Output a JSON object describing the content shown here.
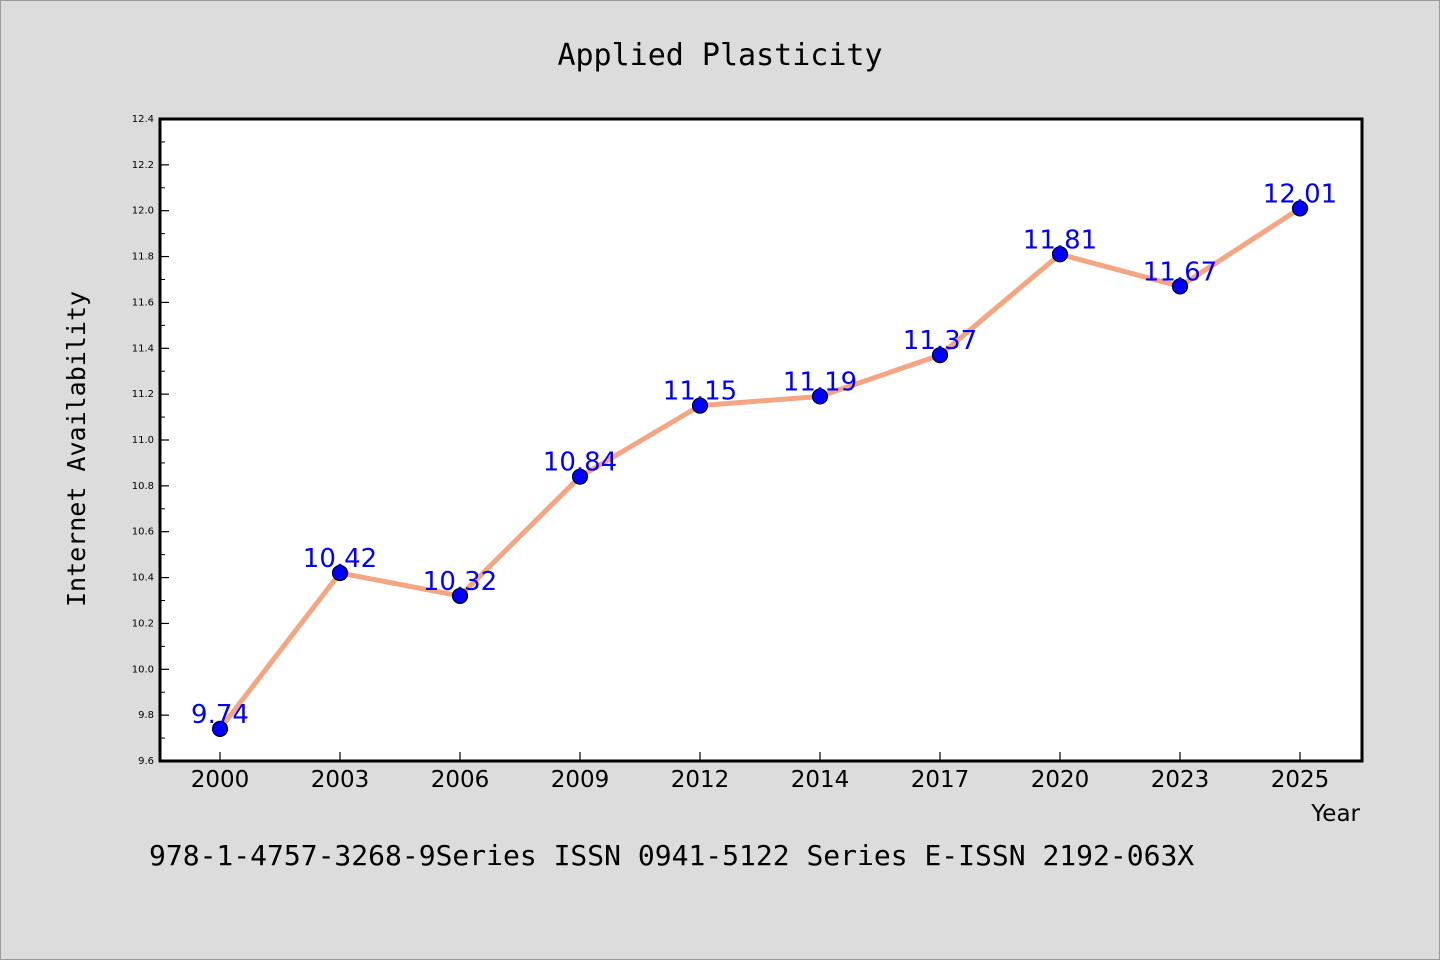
{
  "chart_data": {
    "type": "line",
    "title": "Applied Plasticity",
    "xlabel": "Year",
    "ylabel": "Internet Availability",
    "caption": "978-1-4757-3268-9Series ISSN 0941-5122 Series E-ISSN 2192-063X",
    "categories": [
      "2000",
      "2003",
      "2006",
      "2009",
      "2012",
      "2014",
      "2017",
      "2020",
      "2023",
      "2025"
    ],
    "values": [
      9.74,
      10.42,
      10.32,
      10.84,
      11.15,
      11.19,
      11.37,
      11.81,
      11.67,
      12.01
    ],
    "data_labels": [
      "9.74",
      "10.42",
      "10.32",
      "10.84",
      "11.15",
      "11.19",
      "11.37",
      "11.81",
      "11.67",
      "12.01"
    ],
    "ylim": [
      9.6,
      12.4
    ],
    "yticks": [
      "9.6",
      "9.8",
      "10.0",
      "10.2",
      "10.4",
      "10.6",
      "10.8",
      "11.0",
      "11.2",
      "11.4",
      "11.6",
      "11.8",
      "12.0",
      "12.2",
      "12.4"
    ],
    "grid": false,
    "colors": {
      "line": "#f4a582",
      "marker": "#0000ff",
      "label": "#0000ff",
      "background": "#dcdcdc",
      "plot_area": "#ffffff"
    }
  }
}
